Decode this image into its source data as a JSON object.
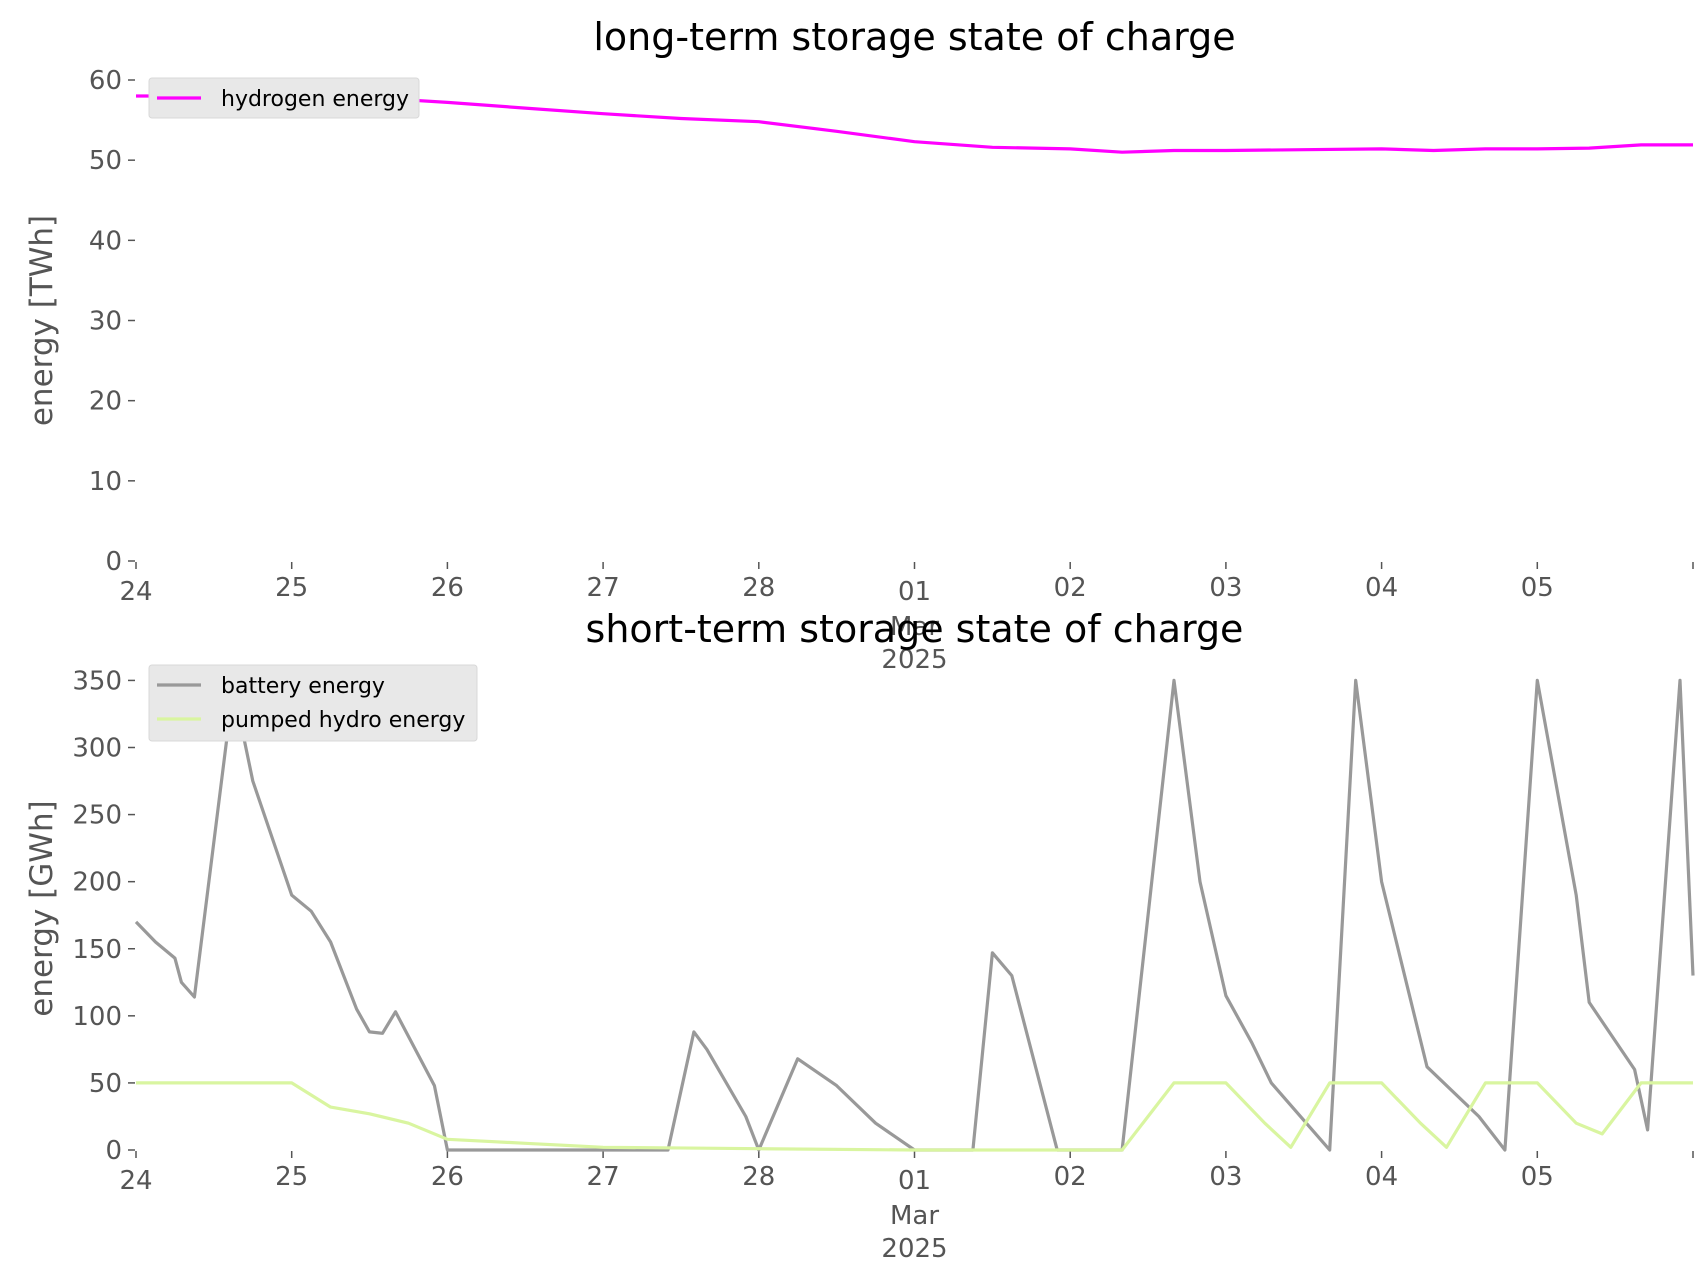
{
  "colors": {
    "hydrogen": "#ff00ff",
    "battery": "#999999",
    "pumped_hydro": "#d9f5a0",
    "legend_bg": "#e8e8e8",
    "tick": "#555555"
  },
  "chart_data": [
    {
      "type": "line",
      "title": "long-term storage state of charge",
      "xlabel": "",
      "ylabel": "energy [TWh]",
      "x_axis": "date",
      "xlim": [
        "2025-02-24",
        "2025-03-06"
      ],
      "x_ticks": [
        "24",
        "25",
        "26",
        "27",
        "28",
        "01",
        "02",
        "03",
        "04",
        "05"
      ],
      "x_tick_sub": [
        "Mar",
        "2025"
      ],
      "ylim": [
        0,
        60
      ],
      "y_ticks": [
        "0",
        "10",
        "20",
        "30",
        "40",
        "50",
        "60"
      ],
      "grid": false,
      "legend": "upper-left",
      "series": [
        {
          "name": "hydrogen energy",
          "color": "#ff00ff",
          "x": [
            "2025-02-24T00:00",
            "2025-02-24T12:00",
            "2025-02-25T00:00",
            "2025-02-25T12:00",
            "2025-02-26T00:00",
            "2025-02-26T12:00",
            "2025-02-27T00:00",
            "2025-02-27T12:00",
            "2025-02-28T00:00",
            "2025-02-28T12:00",
            "2025-03-01T00:00",
            "2025-03-01T12:00",
            "2025-03-02T00:00",
            "2025-03-02T08:00",
            "2025-03-02T16:00",
            "2025-03-03T00:00",
            "2025-03-03T12:00",
            "2025-03-04T00:00",
            "2025-03-04T08:00",
            "2025-03-04T16:00",
            "2025-03-05T00:00",
            "2025-03-05T08:00",
            "2025-03-05T16:00",
            "2025-03-06T00:00"
          ],
          "y": [
            58,
            58,
            58,
            57.8,
            57.2,
            56.5,
            55.8,
            55.2,
            54.8,
            53.6,
            52.3,
            51.6,
            51.4,
            51.0,
            51.2,
            51.2,
            51.3,
            51.4,
            51.2,
            51.4,
            51.4,
            51.5,
            51.9,
            51.9
          ]
        }
      ]
    },
    {
      "type": "line",
      "title": "short-term storage state of charge",
      "xlabel": "",
      "ylabel": "energy [GWh]",
      "x_axis": "date",
      "xlim": [
        "2025-02-24",
        "2025-03-06"
      ],
      "x_ticks": [
        "24",
        "25",
        "26",
        "27",
        "28",
        "01",
        "02",
        "03",
        "04",
        "05"
      ],
      "x_tick_sub": [
        "Mar",
        "2025"
      ],
      "ylim": [
        0,
        360
      ],
      "y_ticks": [
        "0",
        "50",
        "100",
        "150",
        "200",
        "250",
        "300",
        "350"
      ],
      "grid": false,
      "legend": "upper-left",
      "series": [
        {
          "name": "battery energy",
          "color": "#999999",
          "x": [
            "2025-02-24T00:00",
            "2025-02-24T03:00",
            "2025-02-24T06:00",
            "2025-02-24T07:00",
            "2025-02-24T09:00",
            "2025-02-24T15:00",
            "2025-02-24T18:00",
            "2025-02-25T00:00",
            "2025-02-25T03:00",
            "2025-02-25T06:00",
            "2025-02-25T10:00",
            "2025-02-25T12:00",
            "2025-02-25T14:00",
            "2025-02-25T16:00",
            "2025-02-25T22:00",
            "2025-02-26T00:00",
            "2025-02-27T10:00",
            "2025-02-27T14:00",
            "2025-02-27T16:00",
            "2025-02-27T22:00",
            "2025-02-28T00:00",
            "2025-02-28T06:00",
            "2025-02-28T12:00",
            "2025-02-28T18:00",
            "2025-03-01T00:00",
            "2025-03-01T09:00",
            "2025-03-01T12:00",
            "2025-03-01T15:00",
            "2025-03-01T22:00",
            "2025-03-02T08:00",
            "2025-03-02T16:00",
            "2025-03-02T20:00",
            "2025-03-03T00:00",
            "2025-03-03T04:00",
            "2025-03-03T07:00",
            "2025-03-03T16:00",
            "2025-03-03T20:00",
            "2025-03-04T00:00",
            "2025-03-04T07:00",
            "2025-03-04T15:00",
            "2025-03-04T19:00",
            "2025-03-05T00:00",
            "2025-03-05T06:00",
            "2025-03-05T08:00",
            "2025-03-05T15:00",
            "2025-03-05T17:00",
            "2025-03-05T22:00",
            "2025-03-06T00:00"
          ],
          "y": [
            170,
            155,
            143,
            125,
            114,
            345,
            275,
            190,
            178,
            155,
            105,
            88,
            87,
            103,
            48,
            0,
            0,
            88,
            75,
            25,
            0,
            68,
            48,
            20,
            0,
            0,
            147,
            130,
            0,
            0,
            350,
            200,
            115,
            80,
            50,
            0,
            350,
            200,
            62,
            25,
            0,
            350,
            190,
            110,
            60,
            15,
            350,
            130
          ]
        },
        {
          "name": "pumped hydro energy",
          "color": "#d9f5a0",
          "x": [
            "2025-02-24T00:00",
            "2025-02-25T00:00",
            "2025-02-25T06:00",
            "2025-02-25T12:00",
            "2025-02-25T18:00",
            "2025-02-26T00:00",
            "2025-02-26T12:00",
            "2025-02-27T00:00",
            "2025-02-28T00:00",
            "2025-03-01T00:00",
            "2025-03-02T00:00",
            "2025-03-02T08:00",
            "2025-03-02T16:00",
            "2025-03-03T00:00",
            "2025-03-03T06:00",
            "2025-03-03T10:00",
            "2025-03-03T16:00",
            "2025-03-04T00:00",
            "2025-03-04T06:00",
            "2025-03-04T10:00",
            "2025-03-04T16:00",
            "2025-03-05T00:00",
            "2025-03-05T06:00",
            "2025-03-05T10:00",
            "2025-03-05T16:00",
            "2025-03-06T00:00"
          ],
          "y": [
            50,
            50,
            32,
            27,
            20,
            8,
            5,
            2,
            1,
            0,
            0,
            0,
            50,
            50,
            20,
            2,
            50,
            50,
            20,
            2,
            50,
            50,
            20,
            12,
            50,
            50
          ]
        }
      ]
    }
  ]
}
